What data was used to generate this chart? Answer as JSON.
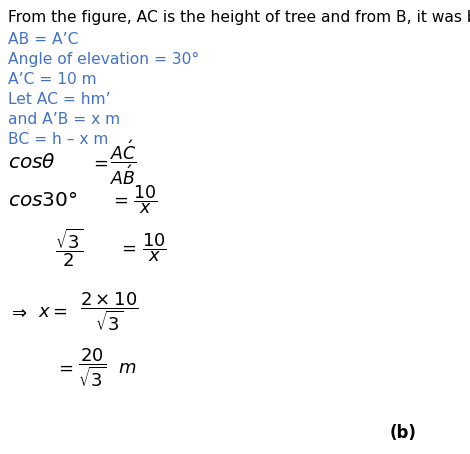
{
  "bg_color": "#ffffff",
  "text_color": "#000000",
  "blue_color": "#4472c4",
  "fig_width": 4.7,
  "fig_height": 4.54,
  "dpi": 100,
  "title_text": "From the figure, AC is the height of tree and from B, it was broken",
  "title_color": "#000000",
  "blue_lines": [
    "AB = A’C",
    "Angle of elevation = 30°",
    "A’C = 10 m",
    "Let AC = hm’",
    "and A’B = x m",
    "BC = h – x m"
  ],
  "b_label": "(b)"
}
